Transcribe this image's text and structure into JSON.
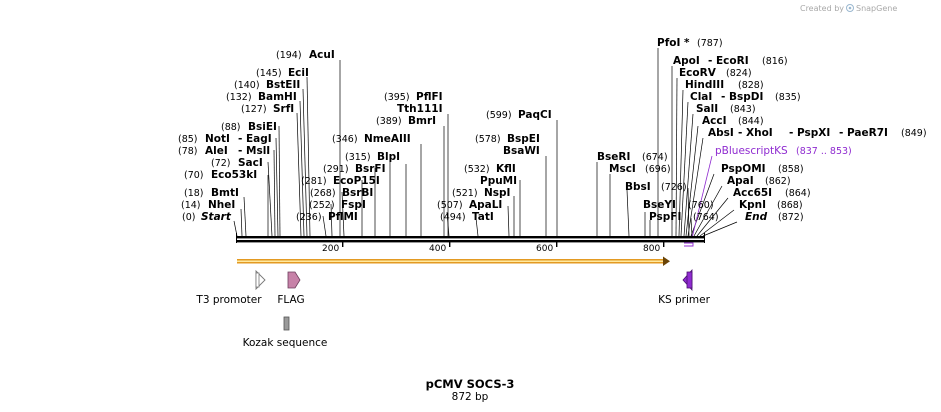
{
  "credit": "Created by",
  "brand": "SnapGene",
  "map_title": "pCMV SOCS-3",
  "map_size": "872 bp",
  "ruler_ticks": [
    "200",
    "400",
    "600",
    "800"
  ],
  "sites_left": [
    {
      "pos": "(194)",
      "name": "AcuI"
    },
    {
      "pos": "(145)",
      "name": "EciI"
    },
    {
      "pos": "(140)",
      "name": "BstEII"
    },
    {
      "pos": "(132)",
      "name": "BamHI"
    },
    {
      "pos": "(127)",
      "name": "SrfI"
    },
    {
      "pos": "(88)",
      "name": "BsiEI"
    },
    {
      "pos": "(85)",
      "name": "NotI",
      "name2": "- EagI"
    },
    {
      "pos": "(78)",
      "name": "AleI",
      "name2": "- MslI"
    },
    {
      "pos": "(72)",
      "name": "SacI"
    },
    {
      "pos": "(70)",
      "name": "Eco53kI"
    },
    {
      "pos": "(18)",
      "name": "BmtI"
    },
    {
      "pos": "(14)",
      "name": "NheI"
    },
    {
      "pos": "(0)",
      "name": "Start"
    }
  ],
  "sites_mid": [
    {
      "pos": "(395)",
      "name": "PflFI"
    },
    {
      "name": "Tth111I"
    },
    {
      "pos": "(389)",
      "name": "BmrI"
    },
    {
      "pos": "(346)",
      "name": "NmeAIII"
    },
    {
      "pos": "(315)",
      "name": "BlpI"
    },
    {
      "pos": "(291)",
      "name": "BsrFI"
    },
    {
      "pos": "(281)",
      "name": "EcoP15I"
    },
    {
      "pos": "(268)",
      "name": "BsrBI"
    },
    {
      "pos": "(252)",
      "name": "FspI"
    },
    {
      "pos": "(236)",
      "name": "PflMI"
    },
    {
      "pos": "(599)",
      "name": "PaqCI"
    },
    {
      "pos": "(578)",
      "name": "BspEI"
    },
    {
      "name": "BsaWI"
    },
    {
      "pos": "(532)",
      "name": "KflI"
    },
    {
      "name": "PpuMI"
    },
    {
      "pos": "(521)",
      "name": "NspI"
    },
    {
      "pos": "(507)",
      "name": "ApaLI"
    },
    {
      "pos": "(494)",
      "name": "TatI"
    }
  ],
  "sites_right": [
    {
      "name": "PfoI *",
      "pos": "(787)"
    },
    {
      "name": "ApoI",
      "name2": "- EcoRI",
      "pos": "(816)"
    },
    {
      "name": "EcoRV",
      "pos": "(824)"
    },
    {
      "name": "HindIII",
      "pos": "(828)"
    },
    {
      "name": "ClaI",
      "name2": "- BspDI",
      "pos": "(835)"
    },
    {
      "name": "SalI",
      "pos": "(843)"
    },
    {
      "name": "AccI",
      "pos": "(844)"
    },
    {
      "name": "AbsI",
      "name2": "- XhoI",
      "name3": "- PspXI",
      "name4": "- PaeR7I",
      "pos": "(849)"
    },
    {
      "name": "BseRI",
      "pos": "(674)"
    },
    {
      "name": "MscI",
      "pos": "(696)"
    },
    {
      "name": "BbsI",
      "pos": "(726)"
    },
    {
      "name": "BseYI",
      "pos": "(760)"
    },
    {
      "name": "PspFI",
      "pos": "(764)"
    },
    {
      "name": "PspOMI",
      "pos": "(858)"
    },
    {
      "name": "ApaI",
      "pos": "(862)"
    },
    {
      "name": "Acc65I",
      "pos": "(864)"
    },
    {
      "name": "KpnI",
      "pos": "(868)"
    },
    {
      "name": "End",
      "pos": "(872)"
    }
  ],
  "primer_site": {
    "name": "pBluescriptKS",
    "range": "(837 .. 853)"
  },
  "features": [
    {
      "name": "T3 promoter"
    },
    {
      "name": "FLAG"
    },
    {
      "name": "Kozak sequence"
    },
    {
      "name": "KS primer"
    }
  ],
  "colors": {
    "backbone": "#000000",
    "orf_fill": "#e39a22",
    "orf_core": "#ffe9a0",
    "flag": "#c782a8",
    "kozak": "#9a9a9a",
    "primer": "#8f2bd0",
    "snapgene_blue": "#3d8fd0"
  }
}
